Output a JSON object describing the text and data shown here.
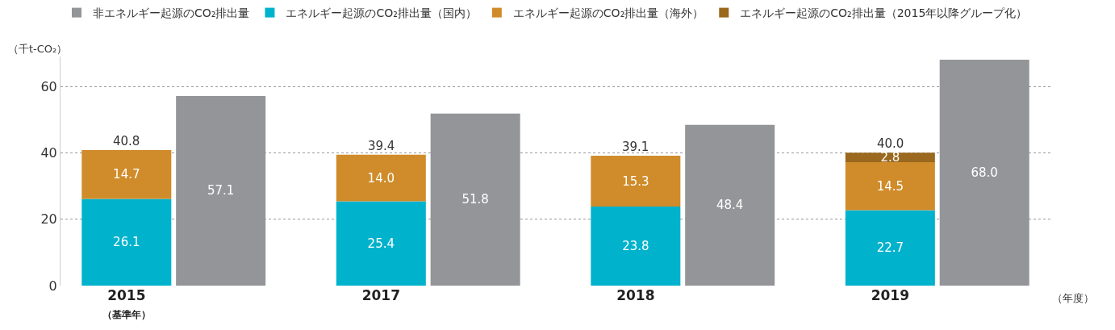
{
  "chart_data": {
    "type": "bar",
    "stacked": true,
    "categories": [
      "2015\n（基準年）",
      null,
      "2017",
      null,
      "2018",
      null,
      "2019",
      null
    ],
    "series": [
      {
        "name": "非エネルギー起源のCO₂排出量",
        "color": "#939598",
        "values": [
          null,
          57.1,
          null,
          51.8,
          null,
          48.4,
          null,
          68.0
        ],
        "value_labels": [
          null,
          "57.1",
          null,
          "51.8",
          null,
          "48.4",
          null,
          "68.0"
        ]
      },
      {
        "name": "エネルギー起源のCO₂排出量（国内）",
        "color": "#00b2cc",
        "values": [
          26.1,
          null,
          25.4,
          null,
          23.8,
          null,
          22.7,
          null
        ],
        "value_labels": [
          "26.1",
          null,
          "25.4",
          null,
          "23.8",
          null,
          "22.7",
          null
        ]
      },
      {
        "name": "エネルギー起源のCO₂排出量（海外）",
        "color": "#d08c2a",
        "values": [
          14.7,
          null,
          14.0,
          null,
          15.3,
          null,
          14.5,
          null
        ],
        "value_labels": [
          "14.7",
          null,
          "14.0",
          null,
          "15.3",
          null,
          "14.5",
          null
        ]
      },
      {
        "name": "エネルギー起源のCO₂排出量（2015年以降グループ化）",
        "color": "#9a681e",
        "values": [
          null,
          null,
          null,
          null,
          null,
          null,
          2.8,
          null
        ],
        "value_labels": [
          null,
          null,
          null,
          null,
          null,
          null,
          "2.8",
          null
        ]
      }
    ],
    "totals": [
      "40.8",
      null,
      "39.4",
      null,
      "39.1",
      null,
      "40.0",
      null
    ],
    "ylabel": "（千t-CO₂）",
    "xlabel": "（年度）",
    "ylim": [
      0,
      69
    ],
    "yticks": [
      0,
      20,
      40,
      60
    ],
    "grid": "y",
    "legend": "top"
  }
}
